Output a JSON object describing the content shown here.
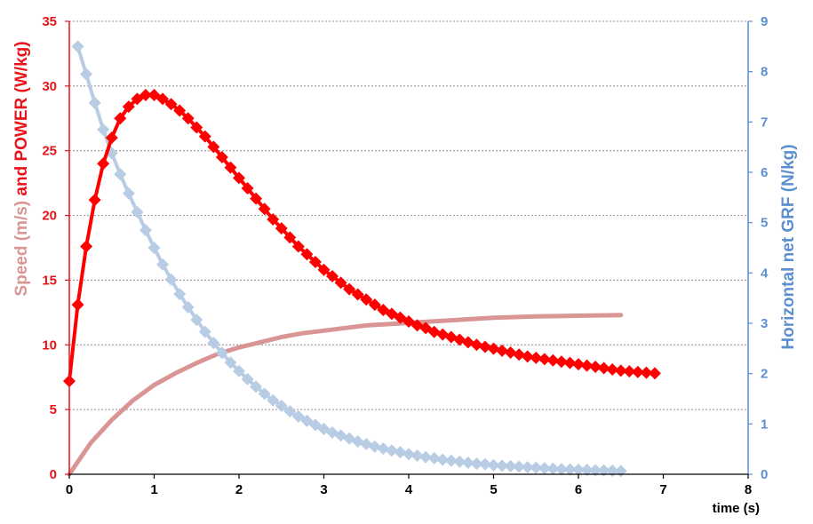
{
  "chart_data": {
    "type": "line",
    "xlabel": "time (s)",
    "ylabel_left_parts": [
      "Speed (m/s)",
      " and ",
      "POWER (W/kg)"
    ],
    "ylabel_right": "Horizontal net GRF (N/kg)",
    "xlim": [
      0,
      8
    ],
    "xticks": [
      0,
      1,
      2,
      3,
      4,
      5,
      6,
      7,
      8
    ],
    "ylim_left": [
      0,
      35
    ],
    "yticks_left": [
      0,
      5,
      10,
      15,
      20,
      25,
      30,
      35
    ],
    "ylim_right": [
      0,
      9
    ],
    "yticks_right": [
      0,
      1,
      2,
      3,
      4,
      5,
      6,
      7,
      8,
      9
    ],
    "grid": "horizontal dotted",
    "colors": {
      "speed": "#d99594",
      "power": "#ff0000",
      "grf": "#b8cce4",
      "left_axis": "#e8141a",
      "right_axis": "#5b8fd0"
    },
    "series": [
      {
        "key": "speed",
        "axis": "left",
        "x": [
          0,
          0.25,
          0.5,
          0.75,
          1.0,
          1.25,
          1.5,
          1.75,
          2.0,
          2.25,
          2.5,
          2.75,
          3.0,
          3.25,
          3.5,
          3.75,
          4.0,
          4.5,
          5.0,
          5.5,
          6.0,
          6.5
        ],
        "y": [
          0.0,
          2.4,
          4.2,
          5.7,
          6.9,
          7.8,
          8.6,
          9.3,
          9.8,
          10.2,
          10.6,
          10.9,
          11.1,
          11.3,
          11.5,
          11.6,
          11.7,
          11.9,
          12.1,
          12.2,
          12.25,
          12.3
        ]
      },
      {
        "key": "power",
        "axis": "left",
        "x": [
          0.0,
          0.1,
          0.2,
          0.3,
          0.4,
          0.5,
          0.6,
          0.7,
          0.8,
          0.9,
          1.0,
          1.1,
          1.2,
          1.3,
          1.4,
          1.5,
          1.6,
          1.7,
          1.8,
          1.9,
          2.0,
          2.1,
          2.2,
          2.3,
          2.4,
          2.5,
          2.6,
          2.7,
          2.8,
          2.9,
          3.0,
          3.1,
          3.2,
          3.3,
          3.4,
          3.5,
          3.6,
          3.7,
          3.8,
          3.9,
          4.0,
          4.1,
          4.2,
          4.3,
          4.4,
          4.5,
          4.6,
          4.7,
          4.8,
          4.9,
          5.0,
          5.1,
          5.2,
          5.3,
          5.4,
          5.5,
          5.6,
          5.7,
          5.8,
          5.9,
          6.0,
          6.1,
          6.2,
          6.3,
          6.4,
          6.5,
          6.6,
          6.7,
          6.8,
          6.9
        ],
        "y": [
          7.2,
          13.1,
          17.6,
          21.2,
          24.0,
          26.0,
          27.5,
          28.4,
          29.0,
          29.3,
          29.3,
          29.0,
          28.6,
          28.1,
          27.5,
          26.8,
          26.1,
          25.3,
          24.5,
          23.7,
          22.9,
          22.1,
          21.3,
          20.5,
          19.7,
          19.0,
          18.3,
          17.6,
          17.0,
          16.4,
          15.8,
          15.3,
          14.8,
          14.3,
          13.9,
          13.5,
          13.1,
          12.7,
          12.4,
          12.1,
          11.8,
          11.5,
          11.3,
          11.0,
          10.8,
          10.6,
          10.4,
          10.2,
          10.0,
          9.85,
          9.7,
          9.55,
          9.4,
          9.25,
          9.1,
          9.0,
          8.9,
          8.8,
          8.7,
          8.6,
          8.5,
          8.4,
          8.3,
          8.2,
          8.1,
          8.0,
          7.95,
          7.9,
          7.85,
          7.8
        ]
      },
      {
        "key": "grf",
        "axis": "right",
        "x": [
          0.1,
          0.2,
          0.3,
          0.4,
          0.5,
          0.6,
          0.7,
          0.8,
          0.9,
          1.0,
          1.1,
          1.2,
          1.3,
          1.4,
          1.5,
          1.6,
          1.7,
          1.8,
          1.9,
          2.0,
          2.1,
          2.2,
          2.3,
          2.4,
          2.5,
          2.6,
          2.7,
          2.8,
          2.9,
          3.0,
          3.1,
          3.2,
          3.3,
          3.4,
          3.5,
          3.6,
          3.7,
          3.8,
          3.9,
          4.0,
          4.1,
          4.2,
          4.3,
          4.4,
          4.5,
          4.6,
          4.7,
          4.8,
          4.9,
          5.0,
          5.1,
          5.2,
          5.3,
          5.4,
          5.5,
          5.6,
          5.7,
          5.8,
          5.9,
          6.0,
          6.1,
          6.2,
          6.3,
          6.4,
          6.5
        ],
        "y": [
          8.5,
          7.95,
          7.38,
          6.85,
          6.38,
          5.96,
          5.58,
          5.21,
          4.85,
          4.5,
          4.17,
          3.87,
          3.58,
          3.32,
          3.07,
          2.83,
          2.61,
          2.41,
          2.22,
          2.05,
          1.89,
          1.74,
          1.6,
          1.47,
          1.36,
          1.25,
          1.15,
          1.06,
          0.98,
          0.9,
          0.83,
          0.77,
          0.71,
          0.65,
          0.6,
          0.55,
          0.51,
          0.47,
          0.44,
          0.4,
          0.37,
          0.34,
          0.32,
          0.29,
          0.27,
          0.25,
          0.23,
          0.21,
          0.2,
          0.18,
          0.17,
          0.16,
          0.15,
          0.14,
          0.13,
          0.12,
          0.11,
          0.1,
          0.095,
          0.09,
          0.085,
          0.08,
          0.075,
          0.07,
          0.065
        ]
      }
    ]
  }
}
